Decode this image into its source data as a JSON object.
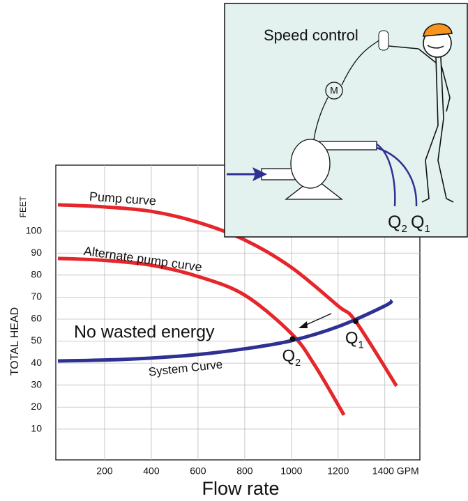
{
  "chart_data": {
    "type": "line",
    "xlabel": "Flow rate",
    "ylabel": "TOTAL HEAD",
    "yunit": "FEET",
    "xlim": [
      0,
      1550
    ],
    "ylim": [
      -4,
      130
    ],
    "xticks": [
      200,
      400,
      600,
      800,
      1000,
      1200,
      {
        "value": 1400,
        "label": "1400 GPM"
      }
    ],
    "yticks": [
      10,
      20,
      30,
      40,
      50,
      60,
      70,
      80,
      90,
      100
    ],
    "grid": true,
    "series": [
      {
        "name": "Pump curve",
        "color": "#e5262b",
        "x": [
          0,
          200,
          400,
          600,
          800,
          1000,
          1200,
          1275,
          1450
        ],
        "values": [
          112,
          111,
          109,
          104,
          96,
          83.5,
          66,
          59,
          29.6
        ]
      },
      {
        "name": "Alternate pump curve",
        "color": "#e5262b",
        "x": [
          0,
          200,
          400,
          600,
          800,
          1000,
          1100,
          1225
        ],
        "values": [
          87.6,
          86.7,
          84.5,
          79.4,
          70.9,
          53.4,
          39,
          16.4
        ]
      },
      {
        "name": "System Curve",
        "color": "#2e3192",
        "x": [
          0,
          200,
          400,
          600,
          800,
          1000,
          1200,
          1400,
          1430
        ],
        "values": [
          41,
          41.4,
          42.3,
          43.9,
          46.5,
          50.2,
          56.6,
          66,
          68.6
        ]
      }
    ],
    "points": [
      {
        "text": "Q",
        "sub": "2",
        "x": 1005,
        "y": 51
      },
      {
        "text": "Q",
        "sub": "1",
        "x": 1275,
        "y": 59
      }
    ],
    "annotations": [
      "No wasted energy"
    ]
  },
  "inset": {
    "title": "Speed control",
    "motor": "M",
    "labels": [
      {
        "text": "Q",
        "sub": "2"
      },
      {
        "text": "Q",
        "sub": "1"
      }
    ]
  }
}
